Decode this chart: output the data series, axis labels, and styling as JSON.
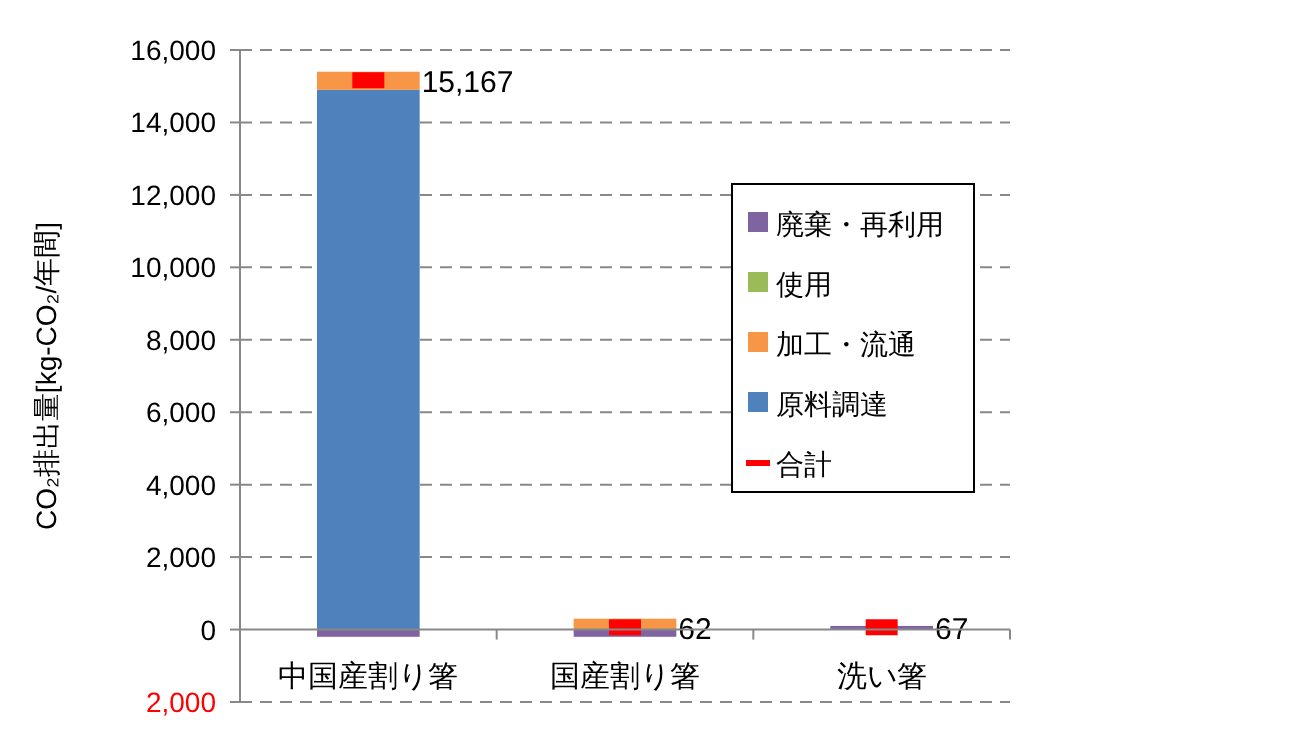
{
  "chart_data": {
    "type": "bar",
    "stacked": true,
    "ylabel": "CO₂排出量[kg-CO₂/年間]",
    "categories": [
      "中国産割り箸",
      "国産割り箸",
      "洗い箸"
    ],
    "series": [
      {
        "name": "原料調達",
        "color": "#4f81bd",
        "values": [
          14900,
          0,
          0
        ]
      },
      {
        "name": "加工・流通",
        "color": "#f79646",
        "values": [
          500,
          300,
          0
        ]
      },
      {
        "name": "使用",
        "color": "#9bbb59",
        "values": [
          0,
          0,
          0
        ]
      },
      {
        "name": "廃棄・再利用",
        "color": "#8064a2",
        "values": [
          -200,
          -200,
          100
        ]
      },
      {
        "name": "合計",
        "type": "scatter",
        "color": "#ff0000",
        "values": [
          15167,
          62,
          67
        ],
        "value_labels": [
          "15,167",
          "62",
          "67"
        ]
      }
    ],
    "ylim": [
      -2000,
      16000
    ],
    "yticks": [
      {
        "value": -2000,
        "label": "2,000"
      },
      {
        "value": 0,
        "label": "0"
      },
      {
        "value": 2000,
        "label": "2,000"
      },
      {
        "value": 4000,
        "label": "4,000"
      },
      {
        "value": 6000,
        "label": "6,000"
      },
      {
        "value": 8000,
        "label": "8,000"
      },
      {
        "value": 10000,
        "label": "10,000"
      },
      {
        "value": 12000,
        "label": "12,000"
      },
      {
        "value": 14000,
        "label": "14,000"
      },
      {
        "value": 16000,
        "label": "16,000"
      }
    ],
    "grid": "y",
    "legend": "right"
  }
}
